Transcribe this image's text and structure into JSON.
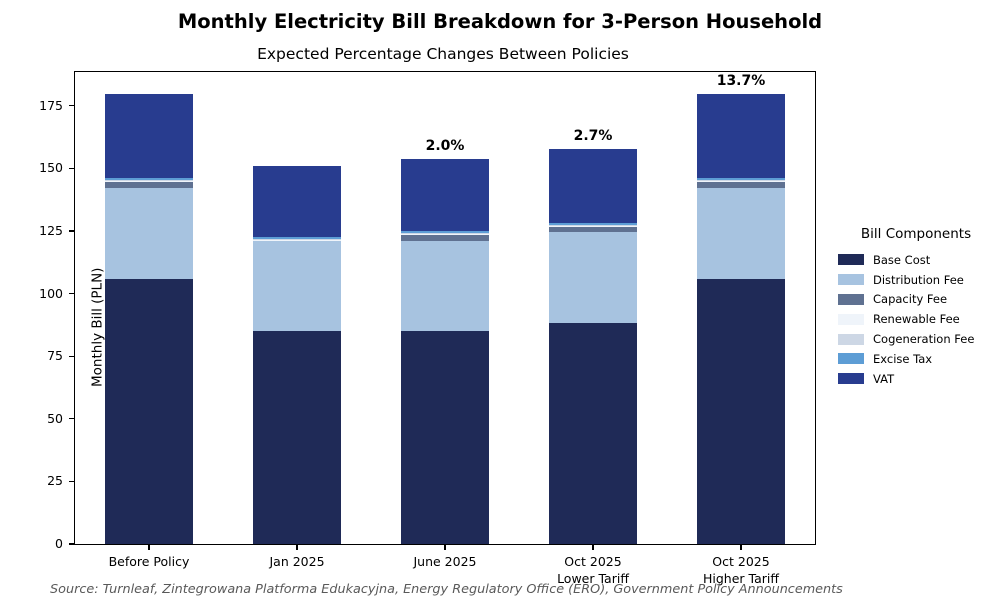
{
  "figure": {
    "title": "Monthly Electricity Bill Breakdown for 3-Person Household",
    "subtitle": "Expected Percentage Changes Between Policies",
    "source_note": "Source: Turnleaf, Zintegrowana Platforma Edukacyjna, Energy Regulatory Office (ERO), Government Policy Announcements"
  },
  "chart_data": {
    "type": "bar",
    "stacked": true,
    "title": "Monthly Electricity Bill Breakdown for 3-Person Household",
    "subtitle": "Expected Percentage Changes Between Policies",
    "xlabel": "",
    "ylabel": "Monthly Bill (PLN)",
    "ylim": [
      0,
      188.5
    ],
    "yticks": [
      0,
      25,
      50,
      75,
      100,
      125,
      150,
      175
    ],
    "grid": false,
    "legend_title": "Bill Components",
    "legend_position": "center-right outside",
    "categories": [
      "Before Policy",
      "Jan 2025",
      "June 2025",
      "Oct 2025\nLower Tariff",
      "Oct 2025\nHigher Tariff"
    ],
    "series": [
      {
        "name": "Base Cost",
        "color": "#1f2a57",
        "values": [
          106.0,
          85.0,
          85.0,
          88.4,
          106.0
        ]
      },
      {
        "name": "Distribution Fee",
        "color": "#a7c3e0",
        "values": [
          36.2,
          36.2,
          36.2,
          36.2,
          36.2
        ]
      },
      {
        "name": "Capacity Fee",
        "color": "#5f7191",
        "values": [
          2.3,
          0.0,
          2.3,
          2.3,
          2.3
        ]
      },
      {
        "name": "Renewable Fee",
        "color": "#eff4fa",
        "values": [
          0.3,
          0.3,
          0.3,
          0.3,
          0.3
        ]
      },
      {
        "name": "Cogeneration Fee",
        "color": "#cdd7e5",
        "values": [
          0.4,
          0.4,
          0.4,
          0.4,
          0.4
        ]
      },
      {
        "name": "Excise Tax",
        "color": "#5d9dd5",
        "values": [
          0.8,
          0.8,
          0.8,
          0.8,
          0.8
        ]
      },
      {
        "name": "VAT",
        "color": "#283c8f",
        "values": [
          33.6,
          28.2,
          28.7,
          29.5,
          33.6
        ]
      }
    ],
    "bar_totals": [
      179.6,
      150.9,
      153.7,
      157.9,
      179.6
    ],
    "annotations": [
      {
        "category_index": 2,
        "label": "2.0%"
      },
      {
        "category_index": 3,
        "label": "2.7%"
      },
      {
        "category_index": 4,
        "label": "13.7%"
      }
    ]
  }
}
